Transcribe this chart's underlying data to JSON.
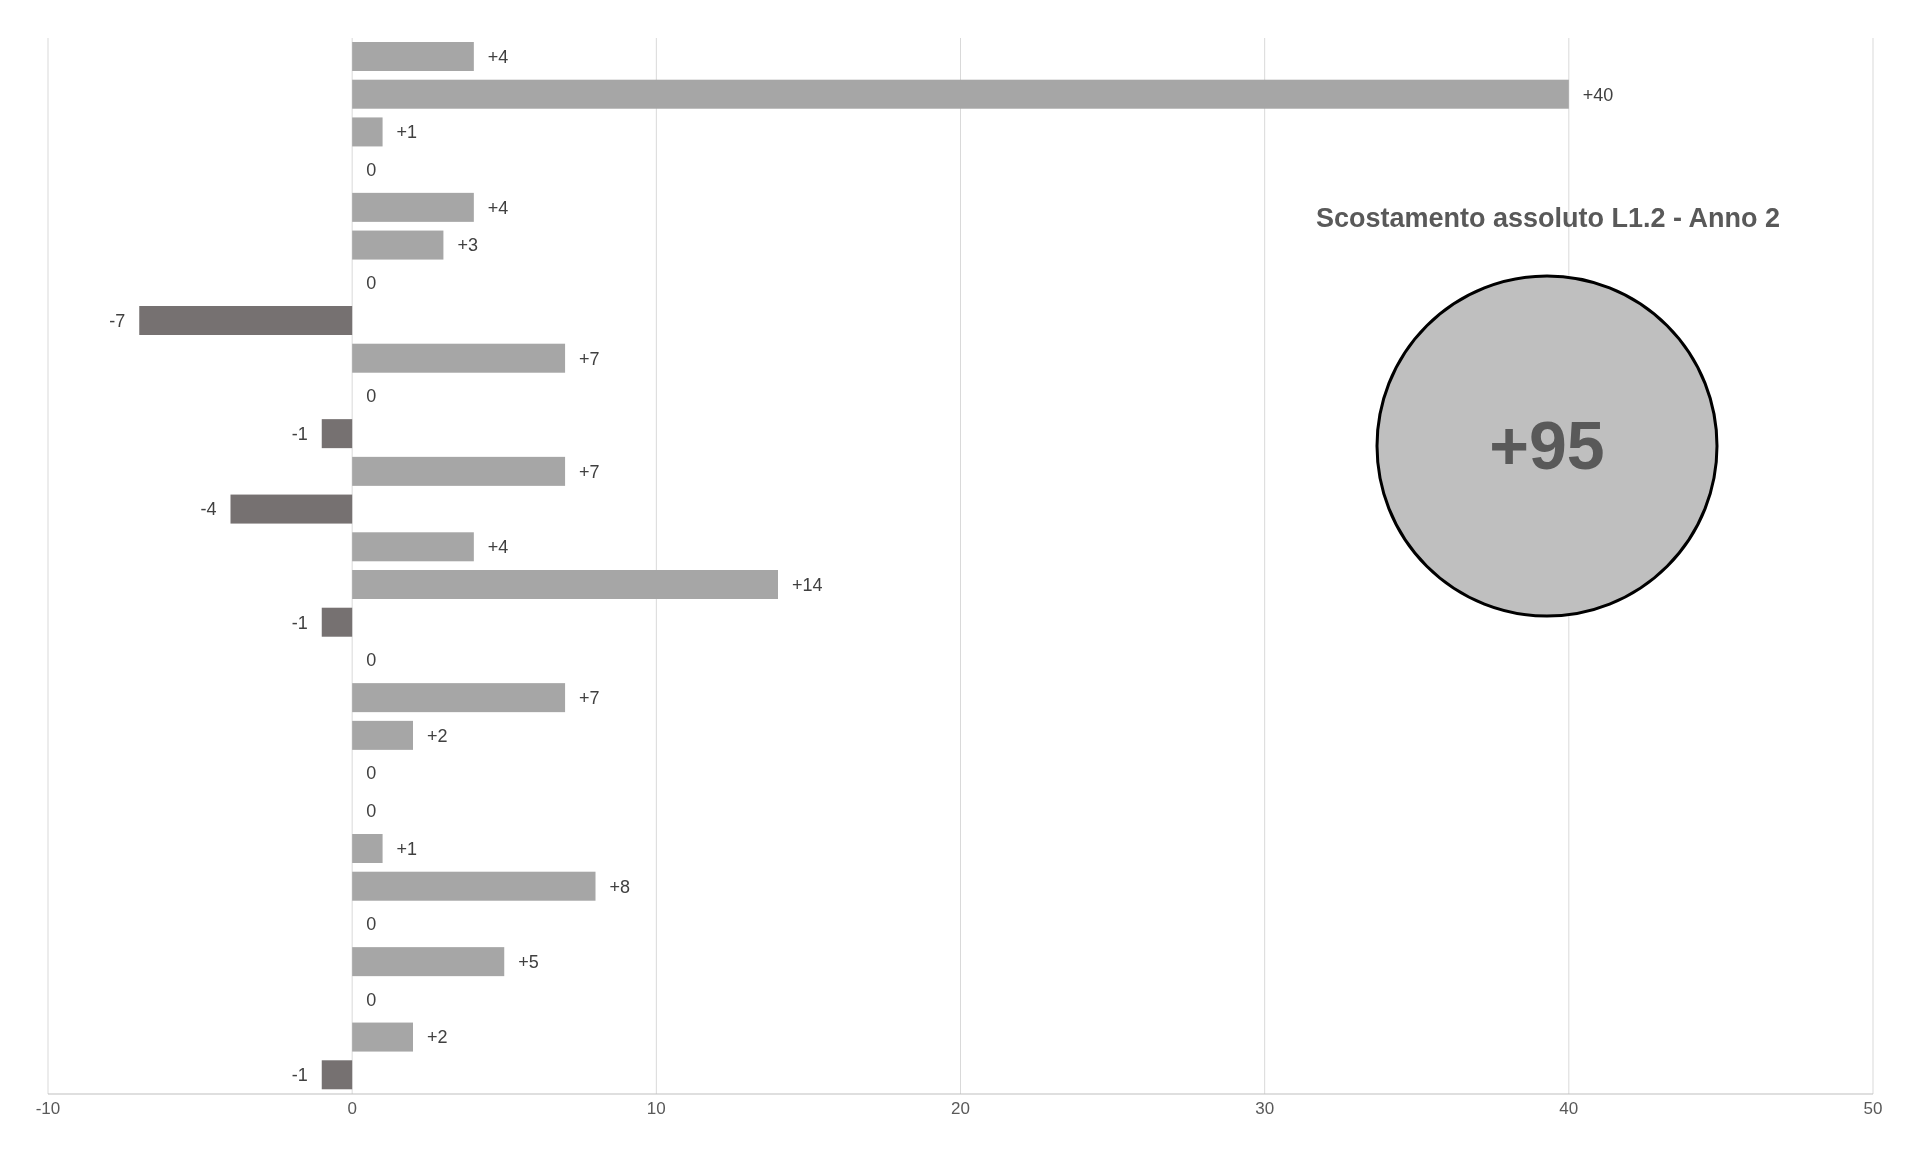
{
  "chart_data": {
    "type": "bar",
    "orientation": "horizontal",
    "title": "Scostamento assoluto L1.2 - Anno 2",
    "annotations": [
      "+95"
    ],
    "categories": [
      null,
      null,
      null,
      null,
      null,
      null,
      null,
      null,
      null,
      null,
      null,
      null,
      null,
      null,
      null,
      null,
      null,
      null,
      null,
      null,
      null,
      null,
      null,
      null,
      null,
      null,
      null,
      null
    ],
    "values": [
      4,
      40,
      1,
      0,
      4,
      3,
      0,
      -7,
      7,
      0,
      -1,
      7,
      -4,
      4,
      14,
      -1,
      0,
      7,
      2,
      0,
      0,
      1,
      8,
      0,
      5,
      0,
      2,
      -1
    ],
    "value_labels": [
      "+4",
      "+40",
      "+1",
      "0",
      "+4",
      "+3",
      "0",
      "-7",
      "+7",
      "0",
      "-1",
      "+7",
      "-4",
      "+4",
      "+14",
      "-1",
      "0",
      "+7",
      "+2",
      "0",
      "0",
      "+1",
      "+8",
      "0",
      "+5",
      "0",
      "+2",
      "-1"
    ],
    "colors": [
      "#a6a6a6",
      "#a6a6a6",
      "#a6a6a6",
      null,
      "#a6a6a6",
      "#a6a6a6",
      null,
      "#767171",
      "#a6a6a6",
      null,
      "#767171",
      "#a6a6a6",
      "#767171",
      "#a6a6a6",
      "#a6a6a6",
      "#767171",
      null,
      "#a6a6a6",
      "#a6a6a6",
      null,
      null,
      "#a6a6a6",
      "#a6a6a6",
      null,
      "#a6a6a6",
      null,
      "#a6a6a6",
      "#767171"
    ],
    "xlim": [
      -10,
      50
    ],
    "xticks": [
      -10,
      0,
      10,
      20,
      30,
      40,
      50
    ],
    "grid": "x"
  }
}
